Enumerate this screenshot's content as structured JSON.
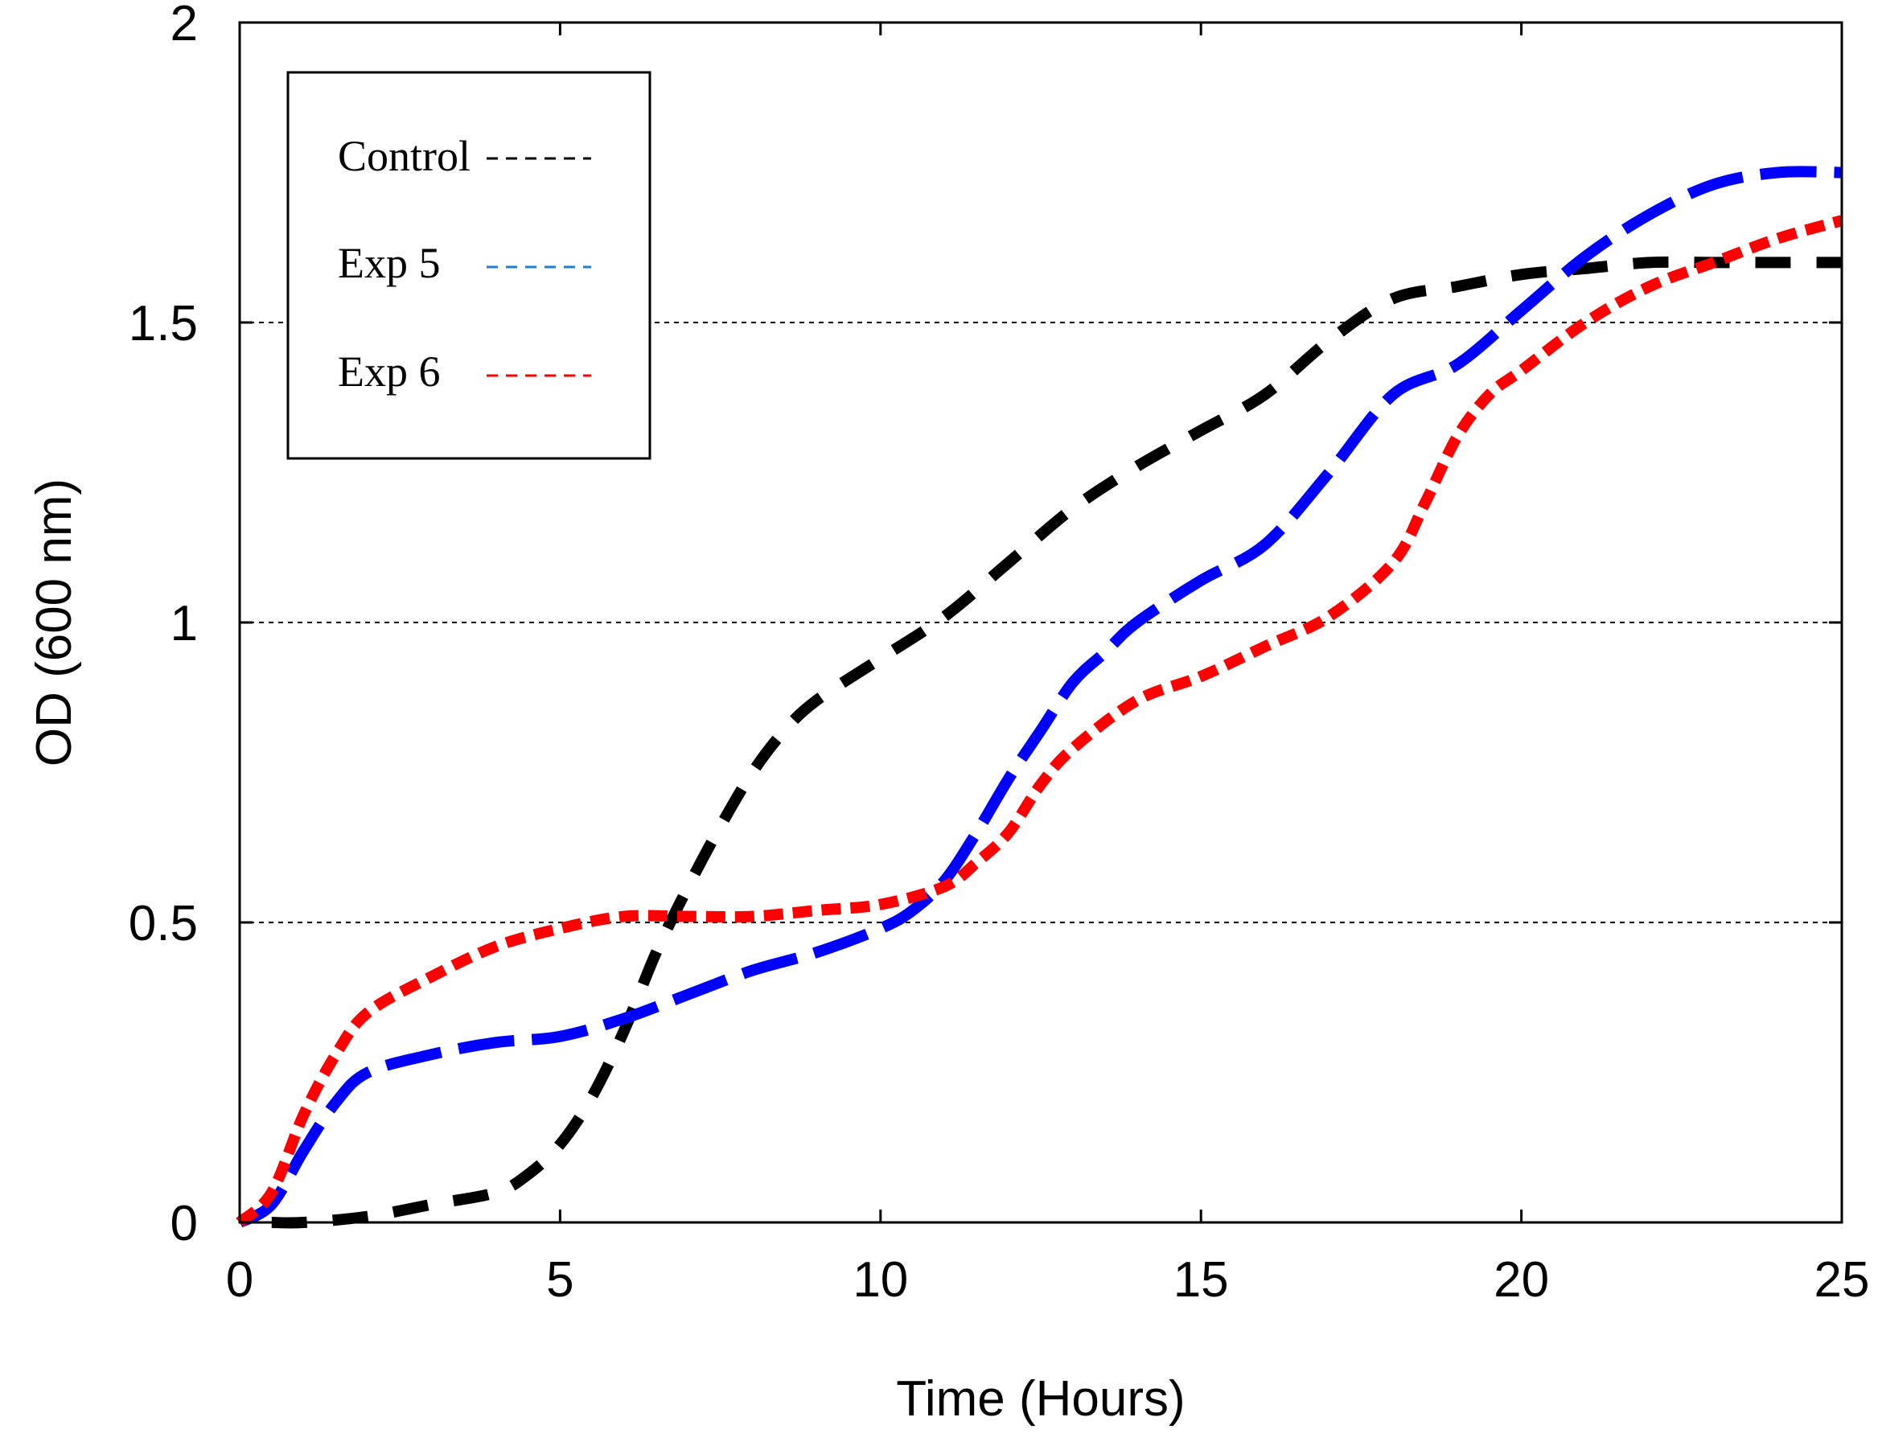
{
  "chart_data": {
    "type": "line",
    "title": "",
    "xlabel": "Time (Hours)",
    "ylabel": "OD (600 nm)",
    "xlim": [
      0,
      25
    ],
    "ylim": [
      0,
      2
    ],
    "xticks": [
      0,
      5,
      10,
      15,
      20,
      25
    ],
    "yticks": [
      0,
      0.5,
      1,
      1.5,
      2
    ],
    "xtick_labels": [
      "0",
      "5",
      "10",
      "15",
      "20",
      "25"
    ],
    "ytick_labels": [
      "0",
      "0.5",
      "1",
      "1.5",
      "2"
    ],
    "grid": "horizontal dashed",
    "legend_position": "top-left",
    "series": [
      {
        "name": "Control",
        "color": "#000000",
        "x": [
          0.5,
          1,
          2,
          3,
          4,
          4.5,
          5,
          5.5,
          6,
          6.5,
          7,
          7.5,
          8,
          8.5,
          9,
          10,
          11,
          12,
          13,
          14,
          15,
          16,
          17,
          18,
          19,
          20,
          21,
          22,
          23,
          24,
          25
        ],
        "y": [
          0.0,
          0.0,
          0.01,
          0.03,
          0.05,
          0.08,
          0.13,
          0.21,
          0.32,
          0.45,
          0.56,
          0.66,
          0.75,
          0.82,
          0.87,
          0.94,
          1.01,
          1.1,
          1.19,
          1.26,
          1.32,
          1.38,
          1.47,
          1.54,
          1.56,
          1.58,
          1.59,
          1.6,
          1.6,
          1.6,
          1.6
        ]
      },
      {
        "name": "Exp 5",
        "color": "#0000ff",
        "x": [
          0,
          0.5,
          1,
          1.5,
          2,
          3,
          4,
          5,
          6,
          7,
          8,
          9,
          10,
          10.5,
          11,
          11.5,
          12,
          12.5,
          13,
          13.5,
          14,
          15,
          16,
          17,
          18,
          19,
          20,
          21,
          22,
          23,
          24,
          25
        ],
        "y": [
          0.0,
          0.03,
          0.12,
          0.2,
          0.25,
          0.28,
          0.3,
          0.31,
          0.34,
          0.38,
          0.42,
          0.45,
          0.49,
          0.52,
          0.57,
          0.65,
          0.74,
          0.82,
          0.9,
          0.95,
          1.0,
          1.07,
          1.13,
          1.25,
          1.38,
          1.43,
          1.52,
          1.61,
          1.68,
          1.73,
          1.75,
          1.75
        ]
      },
      {
        "name": "Exp 6",
        "color": "#ff0000",
        "x": [
          0,
          0.5,
          1,
          1.5,
          2,
          3,
          4,
          5,
          6,
          7,
          8,
          9,
          10,
          11,
          11.5,
          12,
          12.5,
          13,
          14,
          15,
          16,
          17,
          18,
          18.5,
          19,
          19.5,
          20,
          21,
          22,
          23,
          24,
          25
        ],
        "y": [
          0.0,
          0.05,
          0.18,
          0.28,
          0.35,
          0.41,
          0.46,
          0.49,
          0.51,
          0.51,
          0.51,
          0.52,
          0.53,
          0.56,
          0.6,
          0.65,
          0.73,
          0.79,
          0.87,
          0.91,
          0.96,
          1.01,
          1.1,
          1.2,
          1.31,
          1.38,
          1.42,
          1.5,
          1.56,
          1.6,
          1.64,
          1.67
        ]
      }
    ]
  }
}
